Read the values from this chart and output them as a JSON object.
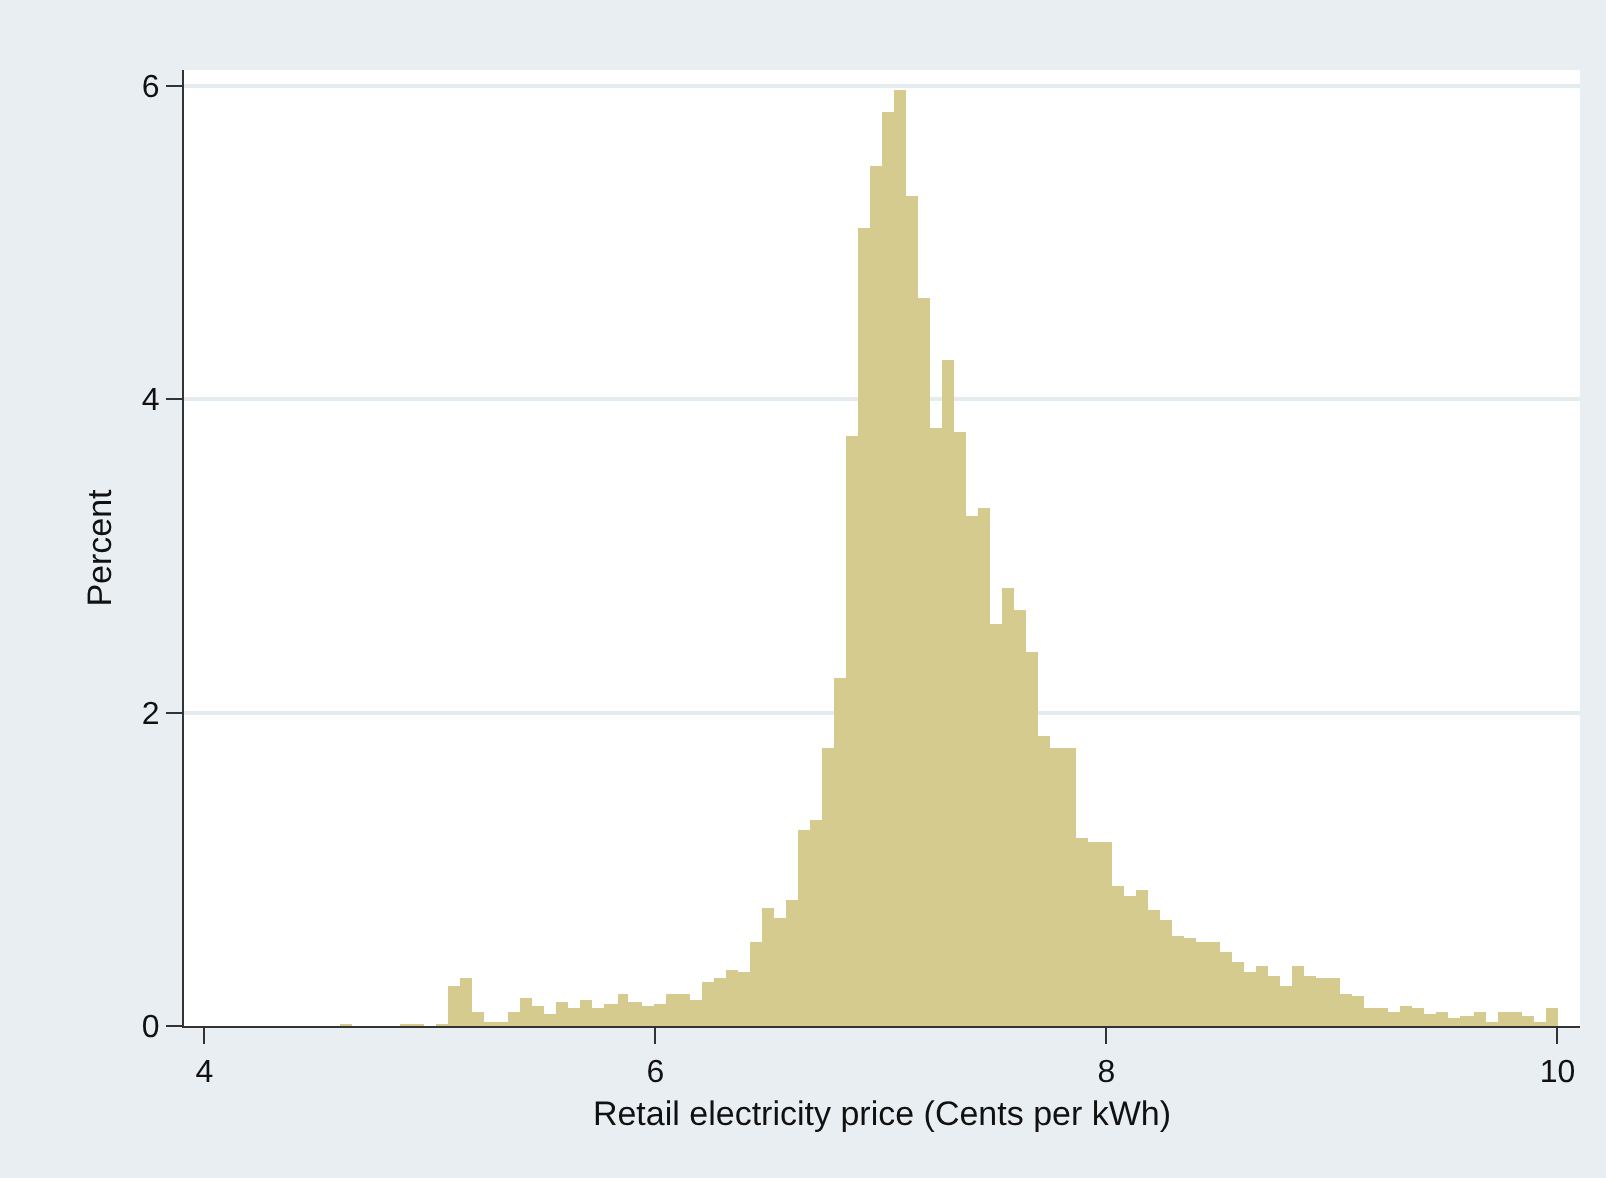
{
  "chart_data": {
    "type": "histogram",
    "xlabel": "Retail electricity price (Cents per kWh)",
    "ylabel": "Percent",
    "bins": [
      4.6,
      4.653,
      4.707,
      4.76,
      4.814,
      4.867,
      4.921,
      4.974,
      5.028,
      5.081,
      5.135,
      5.188,
      5.242,
      5.295,
      5.349,
      5.402,
      5.455,
      5.509,
      5.562,
      5.616,
      5.669,
      5.723,
      5.776,
      5.83,
      5.883,
      5.937,
      5.99,
      6.044,
      6.097,
      6.15,
      6.204,
      6.257,
      6.311,
      6.364,
      6.418,
      6.471,
      6.525,
      6.578,
      6.632,
      6.685,
      6.739,
      6.792,
      6.846,
      6.899,
      6.952,
      7.006,
      7.059,
      7.113,
      7.166,
      7.22,
      7.273,
      7.327,
      7.38,
      7.434,
      7.487,
      7.541,
      7.594,
      7.647,
      7.701,
      7.754,
      7.808,
      7.861,
      7.915,
      7.968,
      8.022,
      8.075,
      8.129,
      8.182,
      8.236,
      8.289,
      8.343,
      8.396,
      8.449,
      8.503,
      8.556,
      8.61,
      8.663,
      8.717,
      8.77,
      8.824,
      8.877,
      8.931,
      8.984,
      9.038,
      9.091,
      9.144,
      9.198,
      9.251,
      9.305,
      9.358,
      9.412,
      9.465,
      9.519,
      9.572,
      9.626,
      9.679,
      9.733,
      9.786,
      9.84,
      9.893,
      9.947,
      10.0
    ],
    "values": [
      0.01,
      0,
      0,
      0,
      0,
      0.01,
      0.01,
      0,
      0.01,
      0.26,
      0.31,
      0.09,
      0.02,
      0.03,
      0.09,
      0.18,
      0.13,
      0.08,
      0.15,
      0.12,
      0.16,
      0.11,
      0.14,
      0.21,
      0.15,
      0.13,
      0.14,
      0.2,
      0.2,
      0.17,
      0.28,
      0.3,
      0.36,
      0.34,
      0.54,
      0.75,
      0.69,
      0.81,
      1.25,
      1.31,
      1.77,
      2.22,
      3.77,
      5.09,
      5.49,
      5.83,
      5.97,
      5.29,
      4.64,
      3.82,
      4.25,
      3.79,
      3.26,
      3.3,
      2.57,
      2.8,
      2.66,
      2.39,
      1.85,
      1.77,
      1.77,
      1.2,
      1.17,
      1.17,
      0.89,
      0.83,
      0.87,
      0.74,
      0.68,
      0.58,
      0.56,
      0.54,
      0.54,
      0.47,
      0.41,
      0.34,
      0.38,
      0.32,
      0.26,
      0.38,
      0.32,
      0.31,
      0.3,
      0.21,
      0.19,
      0.12,
      0.12,
      0.09,
      0.13,
      0.11,
      0.08,
      0.09,
      0.05,
      0.06,
      0.09,
      0.03,
      0.09,
      0.09,
      0.06,
      0.03,
      0.12
    ],
    "color": "#d5cb8f",
    "xlim": [
      3.91,
      10.1
    ],
    "xticks": [
      4,
      6,
      8,
      10
    ],
    "ylim": [
      0,
      6.1
    ],
    "yticks": [
      0,
      2,
      4,
      6
    ],
    "grid": "y"
  }
}
